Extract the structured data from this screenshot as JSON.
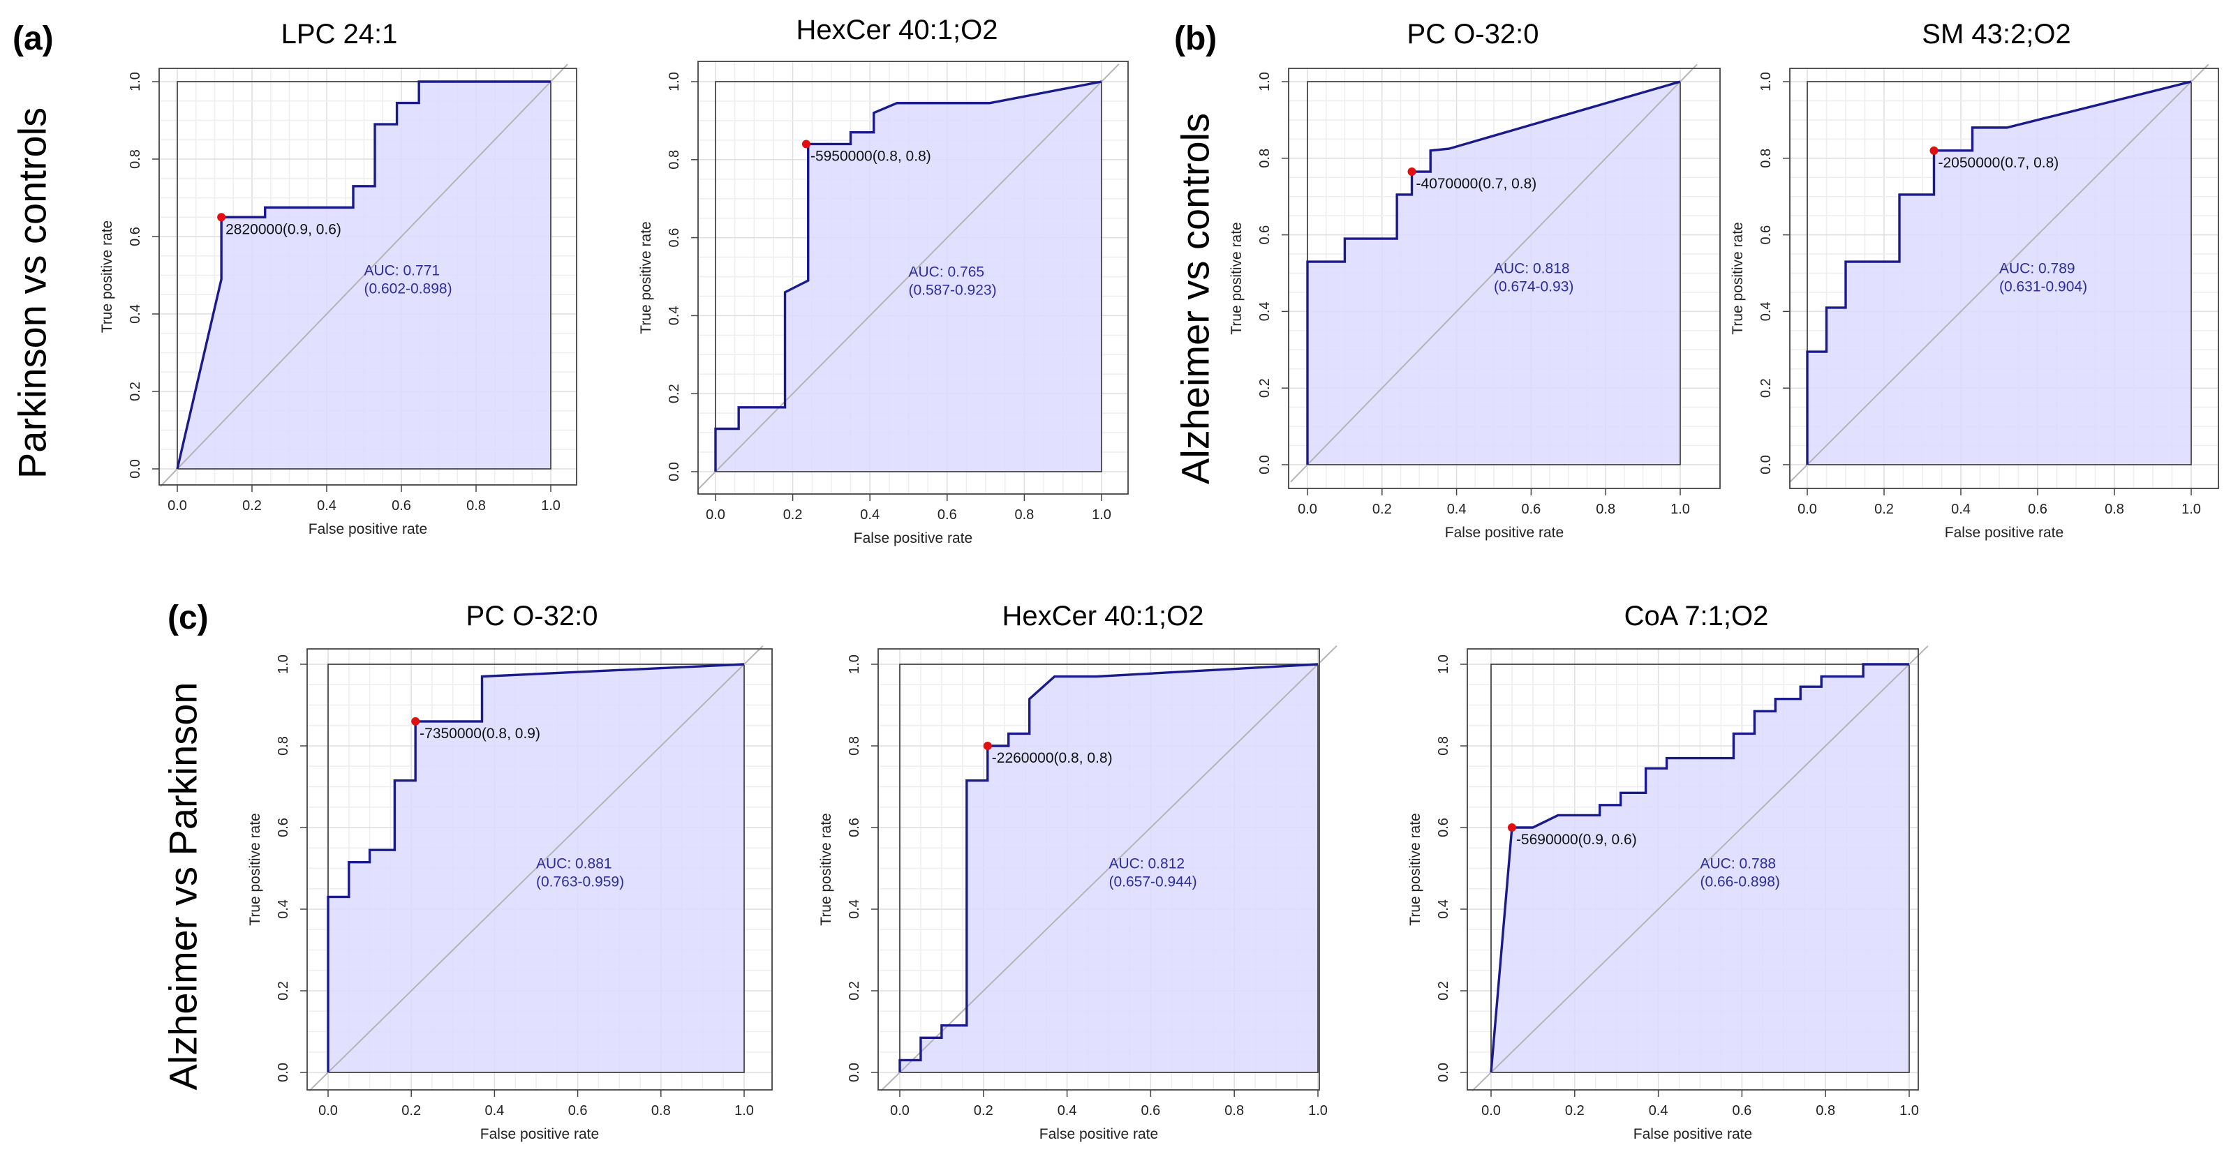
{
  "panels": [
    {
      "letter": "(a)",
      "row_label": "Parkinson vs controls"
    },
    {
      "letter": "(b)",
      "row_label": "Alzheimer vs controls"
    },
    {
      "letter": "(c)",
      "row_label": "Alzheimer vs Parkinson"
    }
  ],
  "colors": {
    "curve": "#1a1a8c",
    "fill": "#dcdcff",
    "point": "#e01010",
    "grid": "#e3e3e3",
    "diagonal": "#b4b4b4",
    "auc_text": "#2d2d9e"
  },
  "chart_data": [
    {
      "type": "line",
      "panel": "(a)",
      "title": "LPC 24:1",
      "xlabel": "False positive rate",
      "ylabel": "True positive rate",
      "xlim": [
        0,
        1
      ],
      "ylim": [
        0,
        1
      ],
      "ticks": [
        "0.0",
        "0.2",
        "0.4",
        "0.6",
        "0.8",
        "1.0"
      ],
      "x": [
        0,
        0.118,
        0.118,
        0.235,
        0.235,
        0.471,
        0.471,
        0.529,
        0.529,
        0.588,
        0.588,
        0.647,
        0.647,
        1.0
      ],
      "y": [
        0,
        0.49,
        0.65,
        0.65,
        0.675,
        0.675,
        0.73,
        0.73,
        0.89,
        0.89,
        0.945,
        0.945,
        1.0,
        1.0
      ],
      "best_point": [
        0.118,
        0.65
      ],
      "threshold_label": "2820000(0.9, 0.6)",
      "auc_label": "AUC: 0.771",
      "ci_label": "(0.602-0.898)"
    },
    {
      "type": "line",
      "panel": "(a)",
      "title": "HexCer 40:1;O2",
      "xlabel": "False positive rate",
      "ylabel": "True positive rate",
      "xlim": [
        0,
        1
      ],
      "ylim": [
        0,
        1
      ],
      "ticks": [
        "0.0",
        "0.2",
        "0.4",
        "0.6",
        "0.8",
        "1.0"
      ],
      "x": [
        0,
        0,
        0.06,
        0.06,
        0.18,
        0.18,
        0.24,
        0.24,
        0.35,
        0.35,
        0.41,
        0.41,
        0.47,
        0.71,
        1.0
      ],
      "y": [
        0,
        0.11,
        0.11,
        0.165,
        0.165,
        0.46,
        0.49,
        0.84,
        0.84,
        0.87,
        0.87,
        0.92,
        0.945,
        0.945,
        1.0
      ],
      "best_point": [
        0.235,
        0.84
      ],
      "threshold_label": "-5950000(0.8, 0.8)",
      "auc_label": "AUC: 0.765",
      "ci_label": "(0.587-0.923)"
    },
    {
      "type": "line",
      "panel": "(b)",
      "title": "PC O-32:0",
      "xlabel": "False positive rate",
      "ylabel": "True positive rate",
      "xlim": [
        0,
        1
      ],
      "ylim": [
        0,
        1
      ],
      "ticks": [
        "0.0",
        "0.2",
        "0.4",
        "0.6",
        "0.8",
        "1.0"
      ],
      "x": [
        0,
        0,
        0.1,
        0.1,
        0.24,
        0.24,
        0.28,
        0.28,
        0.33,
        0.33,
        0.38,
        1.0
      ],
      "y": [
        0,
        0.53,
        0.53,
        0.59,
        0.59,
        0.705,
        0.705,
        0.765,
        0.765,
        0.82,
        0.825,
        1.0
      ],
      "best_point": [
        0.28,
        0.765
      ],
      "threshold_label": "-4070000(0.7, 0.8)",
      "auc_label": "AUC: 0.818",
      "ci_label": "(0.674-0.93)"
    },
    {
      "type": "line",
      "panel": "(b)",
      "title": "SM 43:2;O2",
      "xlabel": "False positive rate",
      "ylabel": "True positive rate",
      "xlim": [
        0,
        1
      ],
      "ylim": [
        0,
        1
      ],
      "ticks": [
        "0.0",
        "0.2",
        "0.4",
        "0.6",
        "0.8",
        "1.0"
      ],
      "x": [
        0,
        0,
        0.05,
        0.05,
        0.1,
        0.1,
        0.24,
        0.24,
        0.33,
        0.33,
        0.43,
        0.43,
        0.52,
        1.0
      ],
      "y": [
        0,
        0.295,
        0.295,
        0.41,
        0.41,
        0.53,
        0.53,
        0.705,
        0.705,
        0.82,
        0.82,
        0.88,
        0.88,
        1.0
      ],
      "best_point": [
        0.33,
        0.82
      ],
      "threshold_label": "-2050000(0.7, 0.8)",
      "auc_label": "AUC: 0.789",
      "ci_label": "(0.631-0.904)"
    },
    {
      "type": "line",
      "panel": "(c)",
      "title": "PC O-32:0",
      "xlabel": "False positive rate",
      "ylabel": "True positive rate",
      "xlim": [
        0,
        1
      ],
      "ylim": [
        0,
        1
      ],
      "ticks": [
        "0.0",
        "0.2",
        "0.4",
        "0.6",
        "0.8",
        "1.0"
      ],
      "x": [
        0,
        0,
        0.05,
        0.05,
        0.1,
        0.1,
        0.16,
        0.16,
        0.21,
        0.21,
        0.37,
        0.37,
        1.0
      ],
      "y": [
        0,
        0.43,
        0.43,
        0.515,
        0.515,
        0.545,
        0.545,
        0.715,
        0.715,
        0.86,
        0.86,
        0.97,
        1.0
      ],
      "best_point": [
        0.21,
        0.86
      ],
      "threshold_label": "-7350000(0.8, 0.9)",
      "auc_label": "AUC: 0.881",
      "ci_label": "(0.763-0.959)"
    },
    {
      "type": "line",
      "panel": "(c)",
      "title": "HexCer 40:1;O2",
      "xlabel": "False positive rate",
      "ylabel": "True positive rate",
      "xlim": [
        0,
        1
      ],
      "ylim": [
        0,
        1
      ],
      "ticks": [
        "0.0",
        "0.2",
        "0.4",
        "0.6",
        "0.8",
        "1.0"
      ],
      "x": [
        0,
        0,
        0.05,
        0.05,
        0.1,
        0.1,
        0.16,
        0.16,
        0.21,
        0.21,
        0.26,
        0.26,
        0.31,
        0.31,
        0.37,
        0.47,
        1.0
      ],
      "y": [
        0,
        0.03,
        0.03,
        0.085,
        0.085,
        0.115,
        0.115,
        0.715,
        0.715,
        0.8,
        0.8,
        0.83,
        0.83,
        0.915,
        0.97,
        0.97,
        1.0
      ],
      "best_point": [
        0.21,
        0.8
      ],
      "threshold_label": "-2260000(0.8, 0.8)",
      "auc_label": "AUC: 0.812",
      "ci_label": "(0.657-0.944)"
    },
    {
      "type": "line",
      "panel": "(c)",
      "title": "CoA 7:1;O2",
      "xlabel": "False positive rate",
      "ylabel": "True positive rate",
      "xlim": [
        0,
        1
      ],
      "ylim": [
        0,
        1
      ],
      "ticks": [
        "0.0",
        "0.2",
        "0.4",
        "0.6",
        "0.8",
        "1.0"
      ],
      "x": [
        0,
        0.05,
        0.1,
        0.16,
        0.26,
        0.26,
        0.31,
        0.31,
        0.37,
        0.37,
        0.42,
        0.42,
        0.58,
        0.58,
        0.63,
        0.63,
        0.68,
        0.68,
        0.74,
        0.74,
        0.79,
        0.79,
        0.89,
        0.89,
        1.0
      ],
      "y": [
        0,
        0.6,
        0.6,
        0.63,
        0.63,
        0.655,
        0.655,
        0.685,
        0.685,
        0.745,
        0.745,
        0.77,
        0.77,
        0.83,
        0.83,
        0.885,
        0.885,
        0.915,
        0.915,
        0.945,
        0.945,
        0.97,
        0.97,
        1.0,
        1.0
      ],
      "best_point": [
        0.05,
        0.6
      ],
      "threshold_label": "-5690000(0.9, 0.6)",
      "auc_label": "AUC: 0.788",
      "ci_label": "(0.66-0.898)"
    }
  ]
}
